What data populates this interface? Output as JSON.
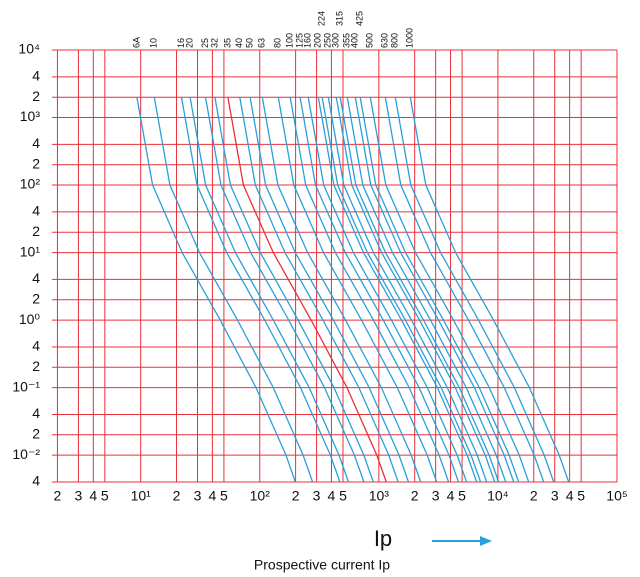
{
  "chart_data": {
    "type": "line",
    "log_x": true,
    "log_y": true,
    "grid": true,
    "grid_color": "#e8303a",
    "x_label": "Ip",
    "x_label_sub": "Prospective current Ip",
    "xlim": [
      1.8,
      100000
    ],
    "ylim": [
      0.004,
      10000
    ],
    "xticks": [
      2,
      3,
      4,
      5,
      {
        "value": 10,
        "label": "10¹"
      },
      {
        "value": 20,
        "label": "2"
      },
      {
        "value": 30,
        "label": "3"
      },
      {
        "value": 40,
        "label": "4"
      },
      {
        "value": 50,
        "label": "5"
      },
      {
        "value": 100,
        "label": "10²"
      },
      {
        "value": 200,
        "label": "2"
      },
      {
        "value": 300,
        "label": "3"
      },
      {
        "value": 400,
        "label": "4"
      },
      {
        "value": 500,
        "label": "5"
      },
      {
        "value": 1000,
        "label": "10³"
      },
      {
        "value": 2000,
        "label": "2"
      },
      {
        "value": 3000,
        "label": "3"
      },
      {
        "value": 4000,
        "label": "4"
      },
      {
        "value": 5000,
        "label": "5"
      },
      {
        "value": 10000,
        "label": "10⁴"
      },
      {
        "value": 20000,
        "label": "2"
      },
      {
        "value": 30000,
        "label": "3"
      },
      {
        "value": 40000,
        "label": "4"
      },
      {
        "value": 50000,
        "label": "5"
      },
      {
        "value": 100000,
        "label": "10⁵"
      }
    ],
    "yticks": [
      {
        "value": 10000,
        "label": "10⁴"
      },
      {
        "value": 4000,
        "label": "4"
      },
      {
        "value": 2000,
        "label": "2"
      },
      {
        "value": 1000,
        "label": "10³"
      },
      {
        "value": 400,
        "label": "4"
      },
      {
        "value": 200,
        "label": "2"
      },
      {
        "value": 100,
        "label": "10²"
      },
      {
        "value": 40,
        "label": "4"
      },
      {
        "value": 20,
        "label": "2"
      },
      {
        "value": 10,
        "label": "10¹"
      },
      4,
      2,
      {
        "value": 1,
        "label": "10⁰"
      },
      {
        "value": 0.4,
        "label": "4"
      },
      {
        "value": 0.2,
        "label": "2"
      },
      {
        "value": 0.1,
        "label": "10⁻¹"
      },
      {
        "value": 0.04,
        "label": "4"
      },
      {
        "value": 0.02,
        "label": "2"
      },
      {
        "value": 0.01,
        "label": "10⁻²"
      },
      {
        "value": 0.004,
        "label": "4"
      }
    ],
    "series": [
      {
        "name": "6A",
        "color": "#2aa0d8",
        "x": [
          9.3,
          12.6,
          22.3,
          46.5,
          93,
          166,
          199
        ],
        "values": [
          2000,
          100,
          10,
          1,
          0.1,
          0.01,
          0.004
        ]
      },
      {
        "name": "10",
        "color": "#2aa0d8",
        "x": [
          13,
          17.6,
          31.2,
          65,
          130,
          231,
          278
        ],
        "values": [
          2000,
          100,
          10,
          1,
          0.1,
          0.01,
          0.004
        ]
      },
      {
        "name": "16",
        "color": "#2aa0d8",
        "x": [
          22,
          29.7,
          52.8,
          110,
          220,
          392,
          471
        ],
        "values": [
          2000,
          100,
          10,
          1,
          0.1,
          0.01,
          0.004
        ]
      },
      {
        "name": "20",
        "color": "#2aa0d8",
        "x": [
          26,
          35.1,
          62.4,
          130,
          260,
          463,
          556
        ],
        "values": [
          2000,
          100,
          10,
          1,
          0.1,
          0.01,
          0.004
        ]
      },
      {
        "name": "25",
        "color": "#2aa0d8",
        "x": [
          35,
          47.3,
          84,
          175,
          350,
          623,
          749
        ],
        "values": [
          2000,
          100,
          10,
          1,
          0.1,
          0.01,
          0.004
        ]
      },
      {
        "name": "32",
        "color": "#2aa0d8",
        "x": [
          42,
          56.7,
          101,
          210,
          420,
          748,
          899
        ],
        "values": [
          2000,
          100,
          10,
          1,
          0.1,
          0.01,
          0.004
        ]
      },
      {
        "name": "35",
        "color": "#e8303a",
        "x": [
          54,
          72.9,
          130,
          270,
          540,
          961,
          1156
        ],
        "values": [
          2000,
          100,
          10,
          1,
          0.1,
          0.01,
          0.004
        ]
      },
      {
        "name": "40",
        "color": "#2aa0d8",
        "x": [
          68,
          91.8,
          163,
          340,
          680,
          1210,
          1455
        ],
        "values": [
          2000,
          100,
          10,
          1,
          0.1,
          0.01,
          0.004
        ]
      },
      {
        "name": "50",
        "color": "#2aa0d8",
        "x": [
          83,
          112,
          199,
          415,
          830,
          1477,
          1776
        ],
        "values": [
          2000,
          100,
          10,
          1,
          0.1,
          0.01,
          0.004
        ]
      },
      {
        "name": "63",
        "color": "#2aa0d8",
        "x": [
          105,
          142,
          252,
          525,
          1050,
          1869,
          2247
        ],
        "values": [
          2000,
          100,
          10,
          1,
          0.1,
          0.01,
          0.004
        ]
      },
      {
        "name": "80",
        "color": "#2aa0d8",
        "x": [
          143,
          193,
          343,
          715,
          1430,
          2545,
          3060
        ],
        "values": [
          2000,
          100,
          10,
          1,
          0.1,
          0.01,
          0.004
        ]
      },
      {
        "name": "100",
        "color": "#2aa0d8",
        "x": [
          180,
          243,
          432,
          900,
          1800,
          3204,
          3852
        ],
        "values": [
          2000,
          100,
          10,
          1,
          0.1,
          0.01,
          0.004
        ]
      },
      {
        "name": "125",
        "color": "#2aa0d8",
        "x": [
          218,
          294,
          523,
          1090,
          2180,
          3880,
          4665
        ],
        "values": [
          2000,
          100,
          10,
          1,
          0.1,
          0.01,
          0.004
        ]
      },
      {
        "name": "160",
        "color": "#2aa0d8",
        "x": [
          255,
          344,
          612,
          1275,
          2550,
          4539,
          5457
        ],
        "values": [
          2000,
          100,
          10,
          1,
          0.1,
          0.01,
          0.004
        ]
      },
      {
        "name": "200",
        "color": "#2aa0d8",
        "x": [
          310,
          419,
          744,
          1550,
          3100,
          5518,
          6634
        ],
        "values": [
          2000,
          100,
          10,
          1,
          0.1,
          0.01,
          0.004
        ]
      },
      {
        "name": "224",
        "color": "#2aa0d8",
        "x": [
          334,
          451,
          802,
          1670,
          3340,
          5945,
          7148
        ],
        "values": [
          2000,
          100,
          10,
          1,
          0.1,
          0.01,
          0.004
        ]
      },
      {
        "name": "250",
        "color": "#2aa0d8",
        "x": [
          376,
          508,
          902,
          1880,
          3760,
          6693,
          8046
        ],
        "values": [
          2000,
          100,
          10,
          1,
          0.1,
          0.01,
          0.004
        ]
      },
      {
        "name": "300",
        "color": "#2aa0d8",
        "x": [
          439,
          593,
          1054,
          2195,
          4390,
          7814,
          9395
        ],
        "values": [
          2000,
          100,
          10,
          1,
          0.1,
          0.01,
          0.004
        ]
      },
      {
        "name": "315",
        "color": "#2aa0d8",
        "x": [
          474,
          640,
          1138,
          2370,
          4740,
          8437,
          10144
        ],
        "values": [
          2000,
          100,
          10,
          1,
          0.1,
          0.01,
          0.004
        ]
      },
      {
        "name": "355",
        "color": "#2aa0d8",
        "x": [
          543,
          733,
          1303,
          2715,
          5430,
          9665,
          11620
        ],
        "values": [
          2000,
          100,
          10,
          1,
          0.1,
          0.01,
          0.004
        ]
      },
      {
        "name": "400",
        "color": "#2aa0d8",
        "x": [
          634,
          856,
          1522,
          3170,
          6340,
          11285,
          13568
        ],
        "values": [
          2000,
          100,
          10,
          1,
          0.1,
          0.01,
          0.004
        ]
      },
      {
        "name": "425",
        "color": "#2aa0d8",
        "x": [
          698,
          942,
          1675,
          3490,
          6980,
          12424,
          14937
        ],
        "values": [
          2000,
          100,
          10,
          1,
          0.1,
          0.01,
          0.004
        ]
      },
      {
        "name": "500",
        "color": "#2aa0d8",
        "x": [
          847,
          1143,
          2033,
          4235,
          8470,
          15077,
          18126
        ],
        "values": [
          2000,
          100,
          10,
          1,
          0.1,
          0.01,
          0.004
        ]
      },
      {
        "name": "630",
        "color": "#2aa0d8",
        "x": [
          1132,
          1528,
          2717,
          5660,
          11320,
          20150,
          24225
        ],
        "values": [
          2000,
          100,
          10,
          1,
          0.1,
          0.01,
          0.004
        ]
      },
      {
        "name": "800",
        "color": "#2aa0d8",
        "x": [
          1374,
          1855,
          3298,
          6870,
          13740,
          24457,
          29404
        ],
        "values": [
          2000,
          100,
          10,
          1,
          0.1,
          0.01,
          0.004
        ]
      },
      {
        "name": "1000",
        "color": "#2aa0d8",
        "x": [
          1837,
          2480,
          4409,
          9185,
          18370,
          32699,
          39312
        ],
        "values": [
          2000,
          100,
          10,
          1,
          0.1,
          0.01,
          0.004
        ]
      }
    ]
  }
}
